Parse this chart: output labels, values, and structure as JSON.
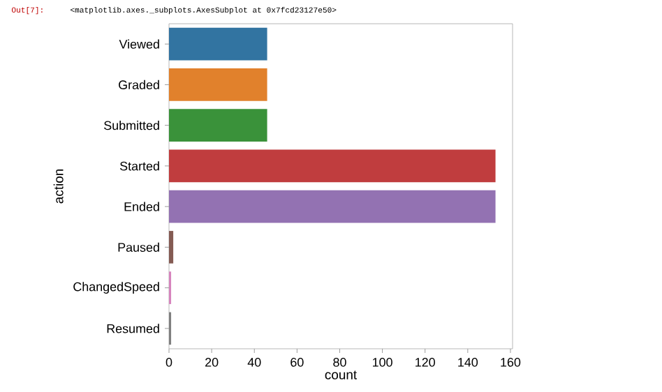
{
  "chart_data": {
    "type": "bar",
    "orientation": "horizontal",
    "xlabel": "count",
    "ylabel": "action",
    "categories": [
      "Viewed",
      "Graded",
      "Submitted",
      "Started",
      "Ended",
      "Paused",
      "ChangedSpeed",
      "Resumed"
    ],
    "values": [
      46,
      46,
      46,
      153,
      153,
      2,
      1,
      1
    ],
    "colors": [
      "#3274a1",
      "#e1812c",
      "#3a923a",
      "#c03d3e",
      "#9372b2",
      "#845b53",
      "#d684bd",
      "#7f7f7f"
    ],
    "xlim": [
      0,
      161
    ],
    "xticks": [
      0,
      20,
      40,
      60,
      80,
      100,
      120,
      140,
      160
    ],
    "annotations": [
      "Out[7]:",
      "<matplotlib.axes._subplots.AxesSubplot at 0x7fcd23127e50>"
    ]
  }
}
